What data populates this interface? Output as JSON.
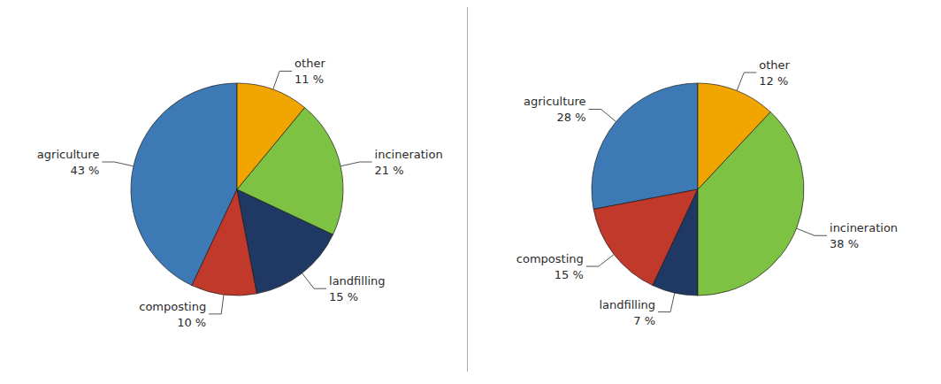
{
  "chart_data": [
    {
      "type": "pie",
      "categories": [
        "agriculture",
        "composting",
        "landfilling",
        "incineration",
        "other"
      ],
      "values": [
        43,
        10,
        15,
        21,
        11
      ],
      "value_labels": [
        "43 %",
        "10 %",
        "15 %",
        "21 %",
        "11 %"
      ],
      "colors": [
        "#3d7ab5",
        "#c0392b",
        "#1f3864",
        "#7dc243",
        "#f0a500"
      ],
      "data_labels": true
    },
    {
      "type": "pie",
      "categories": [
        "agriculture",
        "composting",
        "landfilling",
        "incineration",
        "other"
      ],
      "values": [
        28,
        15,
        7,
        38,
        12
      ],
      "value_labels": [
        "28 %",
        "15 %",
        "7 %",
        "38 %",
        "12 %"
      ],
      "colors": [
        "#3d7ab5",
        "#c0392b",
        "#1f3864",
        "#7dc243",
        "#f0a500"
      ],
      "data_labels": true
    }
  ]
}
